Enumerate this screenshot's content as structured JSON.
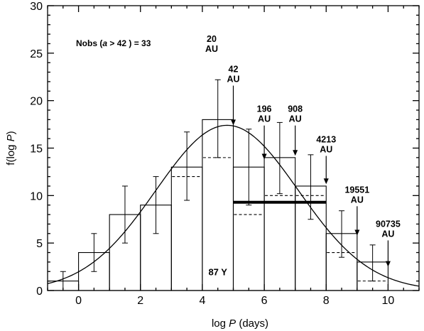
{
  "chart_data": {
    "type": "bar",
    "xlabel": "log P (days)",
    "ylabel": "f(log P)",
    "xlim": [
      -1,
      11
    ],
    "ylim": [
      0,
      30
    ],
    "x_ticks": [
      0,
      2,
      4,
      6,
      8,
      10
    ],
    "y_ticks": [
      0,
      5,
      10,
      15,
      20,
      25,
      30
    ],
    "grid": false,
    "legend": "none",
    "series": [
      {
        "kind": "histogram",
        "bins": [
          [
            -1,
            0
          ],
          [
            0,
            1
          ],
          [
            1,
            2
          ],
          [
            2,
            3
          ],
          [
            3,
            4
          ],
          [
            4,
            5
          ],
          [
            5,
            6
          ],
          [
            6,
            7
          ],
          [
            7,
            8
          ],
          [
            8,
            9
          ],
          [
            9,
            10
          ]
        ],
        "values": [
          1,
          4,
          8,
          9,
          13,
          18,
          13,
          14,
          11,
          6,
          3
        ],
        "err_low": [
          0,
          2,
          5,
          6,
          9.5,
          14,
          9,
          10.2,
          7.5,
          3.5,
          1
        ],
        "err_high": [
          2,
          6,
          11,
          12,
          16.7,
          22.2,
          17,
          17.7,
          14.3,
          8.4,
          4.8
        ]
      },
      {
        "kind": "histogram-dashed",
        "bins": [
          [
            3,
            4
          ],
          [
            4,
            5
          ],
          [
            5,
            6
          ],
          [
            6,
            7
          ],
          [
            7,
            8
          ],
          [
            8,
            9
          ],
          [
            9,
            10
          ]
        ],
        "values": [
          12,
          14,
          8,
          10,
          10,
          4,
          1
        ]
      },
      {
        "kind": "gaussian-fit",
        "mean": 4.8,
        "sigma": 2.3,
        "peak": 17.4
      },
      {
        "kind": "horizontal-bar",
        "x": [
          5,
          8
        ],
        "y": 9.3
      }
    ],
    "annotations": {
      "nobs": "Nobs (a > 42 ) = 33",
      "text_87y": "87 Y",
      "markers": [
        {
          "label": "20",
          "unit": "AU",
          "x": 4.3,
          "y": 26.2,
          "arrow": false
        },
        {
          "label": "42",
          "unit": "AU",
          "x": 5.0,
          "y": 23.0,
          "arrow": true,
          "arrow_to": 17.4
        },
        {
          "label": "196",
          "unit": "AU",
          "x": 6.0,
          "y": 18.8,
          "arrow": true,
          "arrow_to": 13.8
        },
        {
          "label": "908",
          "unit": "AU",
          "x": 7.0,
          "y": 18.8,
          "arrow": true,
          "arrow_to": 14.2
        },
        {
          "label": "4213",
          "unit": "AU",
          "x": 8.0,
          "y": 15.6,
          "arrow": true,
          "arrow_to": 11.2
        },
        {
          "label": "19551",
          "unit": "AU",
          "x": 9.0,
          "y": 10.3,
          "arrow": true,
          "arrow_to": 5.8
        },
        {
          "label": "90735",
          "unit": "AU",
          "x": 10.0,
          "y": 6.7,
          "arrow": true,
          "arrow_to": 2.5
        }
      ]
    }
  }
}
